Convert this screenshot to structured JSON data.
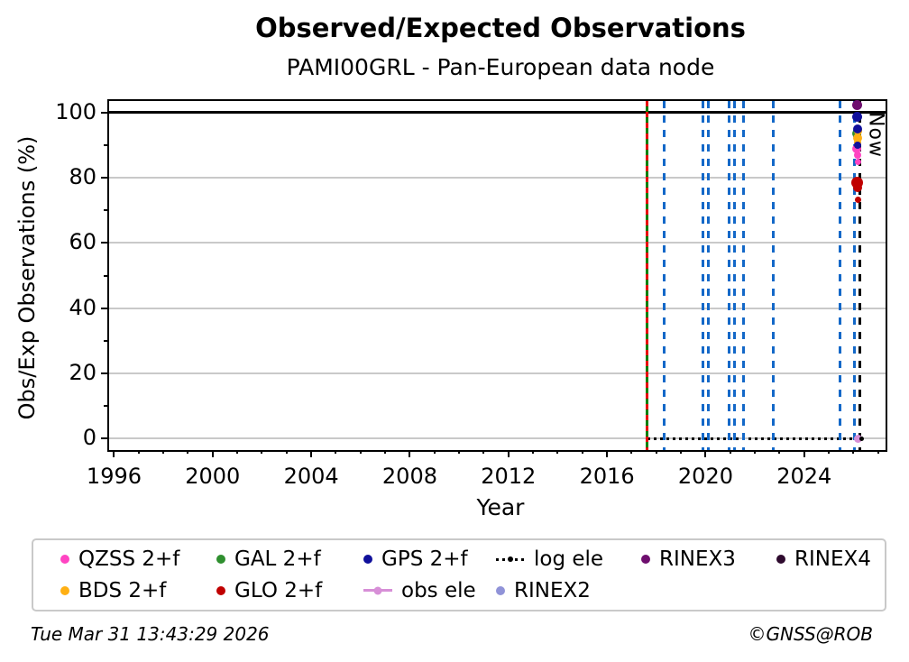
{
  "title": "Observed/Expected Observations",
  "subtitle": "PAMI00GRL - Pan-European data node",
  "now_label": "Now",
  "footer": {
    "timestamp": "Tue Mar 31 13:43:29 2026",
    "copyright": "©GNSS@ROB"
  },
  "legend": {
    "rows": [
      [
        {
          "label": "QZSS 2+f",
          "marker": "dot",
          "color": "#ff44c2"
        },
        {
          "label": "GAL 2+f",
          "marker": "dot",
          "color": "#2f8f2f"
        },
        {
          "label": "GPS 2+f",
          "marker": "dot",
          "color": "#10109b"
        },
        {
          "label": "log ele",
          "marker": "dotted-line-dot",
          "color": "#000000"
        },
        {
          "label": "RINEX3",
          "marker": "dot",
          "color": "#6e0e6e"
        },
        {
          "label": "RINEX4",
          "marker": "dot",
          "color": "#2e0a2e"
        }
      ],
      [
        {
          "label": "BDS 2+f",
          "marker": "dot",
          "color": "#ffb014"
        },
        {
          "label": "GLO 2+f",
          "marker": "dot",
          "color": "#c00000"
        },
        {
          "label": "obs ele",
          "marker": "line-dot",
          "color": "#d78fd7"
        },
        {
          "label": "RINEX2",
          "marker": "dot",
          "color": "#9093d8"
        },
        {
          "label": "",
          "marker": "none",
          "color": ""
        },
        {
          "label": "",
          "marker": "none",
          "color": ""
        }
      ]
    ]
  },
  "chart_data": {
    "type": "scatter",
    "title": "Observed/Expected Observations",
    "subtitle": "PAMI00GRL - Pan-European data node",
    "xlabel": "Year",
    "ylabel": "Obs/Exp Observations (%)",
    "xlim": [
      1995.8,
      2027.3
    ],
    "ylim": [
      -3.5,
      103.5
    ],
    "grid": "horizontal-only",
    "x_ticks": {
      "major": [
        1996,
        2000,
        2004,
        2008,
        2012,
        2016,
        2020,
        2024
      ],
      "minor_step_years": 1
    },
    "y_ticks": {
      "major": [
        0,
        20,
        40,
        60,
        80,
        100
      ],
      "minor": [
        10,
        30,
        50,
        70,
        90
      ]
    },
    "reference_line_100pct": {
      "y": 100,
      "color": "#000000",
      "style": "solid"
    },
    "log_ele_line": {
      "y": 0,
      "from": 2017.64,
      "to": 2026.32,
      "color": "#000000",
      "style": "dotted"
    },
    "event_lines": [
      {
        "year": 2017.64,
        "color": "#008000",
        "style": "solid"
      },
      {
        "year": 2017.64,
        "color": "#e80000",
        "style": "dashed-short"
      },
      {
        "year": 2018.3,
        "color": "#1368c8",
        "style": "dashed"
      },
      {
        "year": 2019.9,
        "color": "#1368c8",
        "style": "dashed"
      },
      {
        "year": 2020.12,
        "color": "#1368c8",
        "style": "dashed"
      },
      {
        "year": 2020.95,
        "color": "#1368c8",
        "style": "dashed"
      },
      {
        "year": 2021.18,
        "color": "#1368c8",
        "style": "dashed"
      },
      {
        "year": 2021.55,
        "color": "#1368c8",
        "style": "dashed"
      },
      {
        "year": 2022.75,
        "color": "#1368c8",
        "style": "dashed"
      },
      {
        "year": 2025.45,
        "color": "#1368c8",
        "style": "dashed"
      },
      {
        "year": 2026.05,
        "color": "#1368c8",
        "style": "dashed"
      }
    ],
    "now_line": {
      "year": 2026.25,
      "color": "#000000",
      "style": "dashed",
      "label": "Now"
    },
    "series": [
      {
        "name": "GAL 2+f",
        "color": "#2f8f2f",
        "points": [
          [
            2026.12,
            93.5,
            10
          ]
        ]
      },
      {
        "name": "QZSS 2+f",
        "color": "#ff44c2",
        "points": [
          [
            2026.13,
            88.8,
            10
          ],
          [
            2026.16,
            87.0,
            8
          ],
          [
            2026.17,
            84.8,
            7
          ]
        ]
      },
      {
        "name": "BDS 2+f",
        "color": "#ffb014",
        "points": [
          [
            2026.17,
            94.2,
            9
          ],
          [
            2026.18,
            92.3,
            10
          ],
          [
            2026.16,
            90.8,
            8
          ]
        ]
      },
      {
        "name": "GPS 2+f",
        "color": "#10109b",
        "points": [
          [
            2026.15,
            98.6,
            11
          ],
          [
            2026.16,
            95.0,
            10
          ],
          [
            2026.17,
            90.0,
            8
          ]
        ]
      },
      {
        "name": "GLO 2+f",
        "color": "#c00000",
        "points": [
          [
            2026.15,
            78.6,
            13
          ],
          [
            2026.16,
            76.9,
            10
          ],
          [
            2026.17,
            73.2,
            7
          ]
        ]
      },
      {
        "name": "RINEX3",
        "color": "#6e0e6e",
        "points": [
          [
            2026.14,
            102.3,
            11
          ]
        ]
      },
      {
        "name": "obs ele",
        "color": "#d78fd7",
        "points": [
          [
            2026.2,
            0.0,
            9
          ]
        ]
      },
      {
        "name": "log ele",
        "color": "#000000",
        "points": [
          [
            2026.32,
            0.0,
            5
          ]
        ]
      }
    ]
  }
}
